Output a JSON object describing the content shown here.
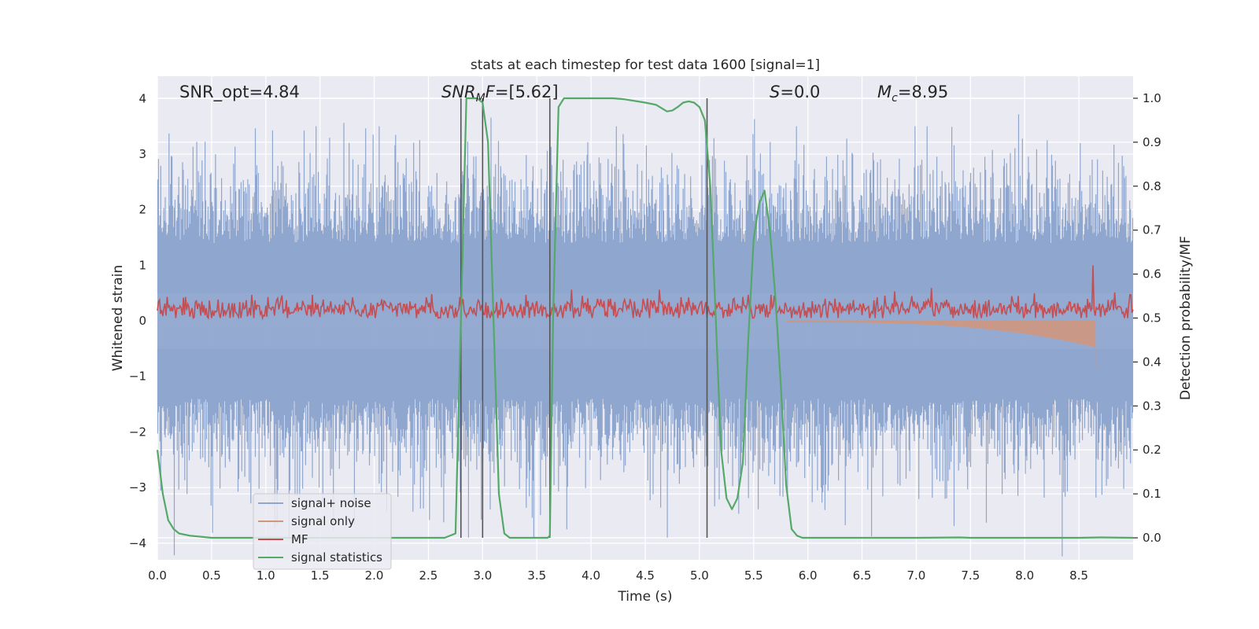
{
  "chart_data": {
    "type": "line",
    "title": "stats at each timestep for test data 1600 [signal=1]",
    "xlabel": "Time (s)",
    "ylabel": "Whitened strain",
    "ylabel_right": "Detection probability/MF",
    "xlim": [
      0.0,
      9.0
    ],
    "ylim": [
      -4.3,
      4.4
    ],
    "ylim_right": [
      -0.05,
      1.05
    ],
    "grid": true,
    "xticks": [
      "0.0",
      "0.5",
      "1.0",
      "1.5",
      "2.0",
      "2.5",
      "3.0",
      "3.5",
      "4.0",
      "4.5",
      "5.0",
      "5.5",
      "6.0",
      "6.5",
      "7.0",
      "7.5",
      "8.0",
      "8.5"
    ],
    "xtick_values": [
      0.0,
      0.5,
      1.0,
      1.5,
      2.0,
      2.5,
      3.0,
      3.5,
      4.0,
      4.5,
      5.0,
      5.5,
      6.0,
      6.5,
      7.0,
      7.5,
      8.0,
      8.5
    ],
    "yticks": [
      "−4",
      "−3",
      "−2",
      "−1",
      "0",
      "1",
      "2",
      "3",
      "4"
    ],
    "ytick_values": [
      -4,
      -3,
      -2,
      -1,
      0,
      1,
      2,
      3,
      4
    ],
    "yticks_right": [
      "0.0",
      "0.1",
      "0.2",
      "0.3",
      "0.4",
      "0.5",
      "0.6",
      "0.7",
      "0.8",
      "0.9",
      "1.0"
    ],
    "ytick_right_values": [
      0.0,
      0.1,
      0.2,
      0.3,
      0.4,
      0.5,
      0.6,
      0.7,
      0.8,
      0.9,
      1.0
    ],
    "annotations": {
      "snr_opt": "SNR_opt=4.84",
      "snr_mf": "[5.62]",
      "s_value": "0.0",
      "mc_value": "8.95"
    },
    "legend": {
      "placement": "lower-left",
      "entries": [
        "signal+ noise",
        "signal only",
        "MF",
        "signal statistics"
      ]
    },
    "colors": {
      "background": "#eaeaf2",
      "grid": "#ffffff",
      "noise": "#8fa6cf",
      "signal": "#d4967a",
      "mf": "#c44e52",
      "stat": "#55a868",
      "vline": "#555555",
      "text": "#262626"
    },
    "series": [
      {
        "name": "signal+ noise",
        "description_type": "noise",
        "amplitude_envelope": [
          -3.9,
          3.5
        ],
        "typical_range": [
          -2.4,
          2.4
        ]
      },
      {
        "name": "signal only",
        "chirp_start": 5.8,
        "chirp_end": 8.65,
        "peak_amplitude": -0.85
      },
      {
        "name": "MF",
        "axis": "right",
        "baseline": 0.52,
        "typical_range": [
          0.5,
          0.57
        ],
        "spike": {
          "x": 8.63,
          "value": 0.62
        }
      },
      {
        "name": "signal statistics",
        "axis": "right",
        "x": [
          0.0,
          0.05,
          0.1,
          0.15,
          0.2,
          0.3,
          0.5,
          1.0,
          2.0,
          2.5,
          2.65,
          2.75,
          2.8,
          2.85,
          2.95,
          3.0,
          3.05,
          3.1,
          3.15,
          3.2,
          3.25,
          3.3,
          3.4,
          3.5,
          3.6,
          3.62,
          3.65,
          3.7,
          3.75,
          4.0,
          4.2,
          4.3,
          4.5,
          4.6,
          4.7,
          4.75,
          4.8,
          4.85,
          4.9,
          4.95,
          5.0,
          5.05,
          5.1,
          5.15,
          5.2,
          5.25,
          5.3,
          5.35,
          5.4,
          5.45,
          5.5,
          5.55,
          5.6,
          5.65,
          5.7,
          5.75,
          5.8,
          5.85,
          5.9,
          5.95,
          6.0,
          6.1,
          6.5,
          7.0,
          7.4,
          7.5,
          8.0,
          8.5,
          8.7,
          9.0
        ],
        "values": [
          0.2,
          0.1,
          0.04,
          0.02,
          0.01,
          0.005,
          0.0,
          0.0,
          0.0,
          0.0,
          0.0,
          0.01,
          0.5,
          1.0,
          1.0,
          0.99,
          0.9,
          0.5,
          0.1,
          0.01,
          0.0,
          0.0,
          0.0,
          0.0,
          0.0,
          0.005,
          0.5,
          0.98,
          1.0,
          1.0,
          1.0,
          0.998,
          0.99,
          0.985,
          0.97,
          0.972,
          0.98,
          0.99,
          0.993,
          0.99,
          0.98,
          0.95,
          0.8,
          0.5,
          0.2,
          0.09,
          0.065,
          0.09,
          0.17,
          0.45,
          0.68,
          0.76,
          0.79,
          0.7,
          0.55,
          0.35,
          0.12,
          0.02,
          0.005,
          0.0,
          0.0,
          0.0,
          0.0,
          0.0,
          0.001,
          0.0,
          0.0,
          0.0,
          0.001,
          0.0
        ]
      }
    ],
    "vertical_lines_x": [
      2.8,
      3.0,
      3.62,
      5.07
    ]
  }
}
